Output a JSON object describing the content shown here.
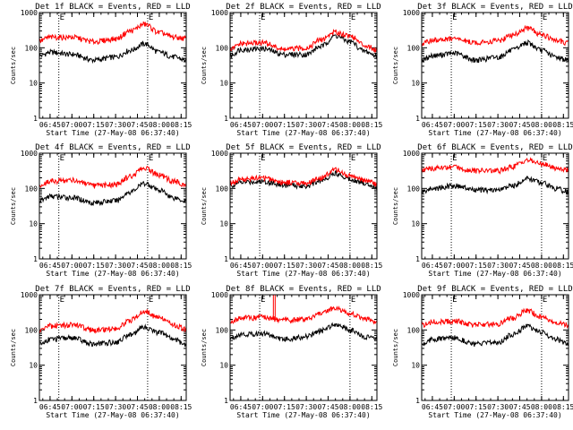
{
  "chart_data": [
    {
      "type": "line",
      "title": "Det 1f BLACK = Events, RED = LLD",
      "xlabel": "Start Time (27-May-08 06:37:40)",
      "ylabel": "Counts/sec",
      "y_scale": "log",
      "ylim": [
        1,
        1000
      ],
      "xlim": [
        "06:37:40",
        "08:18:30"
      ],
      "x_ticks": [
        "06:45",
        "07:00",
        "07:15",
        "07:30",
        "07:45",
        "08:00",
        "08:15"
      ],
      "y_ticks": [
        "1",
        "10",
        "100",
        "1000"
      ],
      "markers": [
        "06:51",
        "07:52"
      ],
      "marker_labels": [
        "E",
        "E"
      ],
      "x": [
        "06:38",
        "06:45",
        "07:00",
        "07:15",
        "07:30",
        "07:40",
        "07:50",
        "08:00",
        "08:10",
        "08:18"
      ],
      "series": [
        {
          "name": "BLACK = Events",
          "color": "#000000",
          "values": [
            60,
            75,
            65,
            45,
            55,
            85,
            130,
            75,
            55,
            45
          ]
        },
        {
          "name": "RED = LLD",
          "color": "#ff0000",
          "values": [
            160,
            200,
            200,
            150,
            180,
            300,
            470,
            270,
            200,
            185
          ]
        }
      ]
    },
    {
      "type": "line",
      "title": "Det 2f BLACK = Events, RED = LLD",
      "xlabel": "Start Time (27-May-08 06:37:40)",
      "ylabel": "Counts/sec",
      "y_scale": "log",
      "ylim": [
        1,
        1000
      ],
      "xlim": [
        "06:37:40",
        "08:18:30"
      ],
      "x_ticks": [
        "06:45",
        "07:00",
        "07:15",
        "07:30",
        "07:45",
        "08:00",
        "08:15"
      ],
      "y_ticks": [
        "1",
        "10",
        "100",
        "1000"
      ],
      "markers": [
        "06:58",
        "08:00"
      ],
      "marker_labels": [
        "E",
        "E"
      ],
      "x": [
        "06:38",
        "06:45",
        "07:00",
        "07:15",
        "07:30",
        "07:40",
        "07:50",
        "08:00",
        "08:10",
        "08:18"
      ],
      "series": [
        {
          "name": "BLACK = Events",
          "color": "#000000",
          "values": [
            60,
            90,
            95,
            65,
            65,
            110,
            220,
            150,
            80,
            60
          ]
        },
        {
          "name": "RED = LLD",
          "color": "#ff0000",
          "values": [
            90,
            130,
            140,
            90,
            100,
            170,
            280,
            220,
            120,
            90
          ]
        }
      ]
    },
    {
      "type": "line",
      "title": "Det 3f BLACK = Events, RED = LLD",
      "xlabel": "Start Time (27-May-08 06:37:40)",
      "ylabel": "Counts/sec",
      "y_scale": "log",
      "ylim": [
        1,
        1000
      ],
      "xlim": [
        "06:37:40",
        "08:18:30"
      ],
      "x_ticks": [
        "06:45",
        "07:00",
        "07:15",
        "07:30",
        "07:45",
        "08:00",
        "08:15"
      ],
      "y_ticks": [
        "1",
        "10",
        "100",
        "1000"
      ],
      "markers": [
        "06:58",
        "08:00"
      ],
      "marker_labels": [
        "E",
        "E"
      ],
      "x": [
        "06:38",
        "06:45",
        "07:00",
        "07:15",
        "07:30",
        "07:40",
        "07:50",
        "08:00",
        "08:10",
        "08:18"
      ],
      "series": [
        {
          "name": "BLACK = Events",
          "color": "#000000",
          "values": [
            45,
            60,
            70,
            45,
            55,
            85,
            140,
            85,
            55,
            45
          ]
        },
        {
          "name": "RED = LLD",
          "color": "#ff0000",
          "values": [
            130,
            165,
            180,
            140,
            160,
            230,
            360,
            240,
            160,
            140
          ]
        }
      ]
    },
    {
      "type": "line",
      "title": "Det 4f BLACK = Events, RED = LLD",
      "xlabel": "Start Time (27-May-08 06:37:40)",
      "ylabel": "Counts/sec",
      "y_scale": "log",
      "ylim": [
        1,
        1000
      ],
      "xlim": [
        "06:37:40",
        "08:18:30"
      ],
      "x_ticks": [
        "06:45",
        "07:00",
        "07:15",
        "07:30",
        "07:45",
        "08:00",
        "08:15"
      ],
      "y_ticks": [
        "1",
        "10",
        "100",
        "1000"
      ],
      "markers": [
        "06:51",
        "07:52"
      ],
      "marker_labels": [
        "E",
        "E"
      ],
      "x": [
        "06:38",
        "06:45",
        "07:00",
        "07:15",
        "07:30",
        "07:40",
        "07:50",
        "08:00",
        "08:10",
        "08:18"
      ],
      "series": [
        {
          "name": "BLACK = Events",
          "color": "#000000",
          "values": [
            45,
            60,
            55,
            40,
            45,
            80,
            140,
            90,
            55,
            45
          ]
        },
        {
          "name": "RED = LLD",
          "color": "#ff0000",
          "values": [
            120,
            160,
            175,
            120,
            130,
            220,
            380,
            240,
            160,
            130
          ]
        }
      ]
    },
    {
      "type": "line",
      "title": "Det 5f BLACK = Events, RED = LLD",
      "xlabel": "Start Time (27-May-08 06:37:40)",
      "ylabel": "Counts/sec",
      "y_scale": "log",
      "ylim": [
        1,
        1000
      ],
      "xlim": [
        "06:37:40",
        "08:18:30"
      ],
      "x_ticks": [
        "06:45",
        "07:00",
        "07:15",
        "07:30",
        "07:45",
        "08:00",
        "08:15"
      ],
      "y_ticks": [
        "1",
        "10",
        "100",
        "1000"
      ],
      "markers": [
        "06:58",
        "08:00"
      ],
      "marker_labels": [
        "E",
        "E"
      ],
      "x": [
        "06:38",
        "06:45",
        "07:00",
        "07:15",
        "07:30",
        "07:40",
        "07:50",
        "08:00",
        "08:10",
        "08:18"
      ],
      "series": [
        {
          "name": "BLACK = Events",
          "color": "#000000",
          "values": [
            120,
            150,
            160,
            125,
            120,
            170,
            270,
            190,
            140,
            115
          ]
        },
        {
          "name": "RED = LLD",
          "color": "#ff0000",
          "values": [
            145,
            180,
            200,
            150,
            140,
            200,
            340,
            230,
            170,
            140
          ]
        }
      ]
    },
    {
      "type": "line",
      "title": "Det 6f BLACK = Events, RED = LLD",
      "xlabel": "Start Time (27-May-08 06:37:40)",
      "ylabel": "Counts/sec",
      "y_scale": "log",
      "ylim": [
        1,
        1000
      ],
      "xlim": [
        "06:37:40",
        "08:18:30"
      ],
      "x_ticks": [
        "06:45",
        "07:00",
        "07:15",
        "07:30",
        "07:45",
        "08:00",
        "08:15"
      ],
      "y_ticks": [
        "1",
        "10",
        "100",
        "1000"
      ],
      "markers": [
        "06:58",
        "08:00"
      ],
      "marker_labels": [
        "E",
        "E"
      ],
      "x": [
        "06:38",
        "06:45",
        "07:00",
        "07:15",
        "07:30",
        "07:40",
        "07:50",
        "08:00",
        "08:10",
        "08:18"
      ],
      "series": [
        {
          "name": "BLACK = Events",
          "color": "#000000",
          "values": [
            80,
            100,
            120,
            90,
            90,
            120,
            190,
            150,
            100,
            80
          ]
        },
        {
          "name": "RED = LLD",
          "color": "#ff0000",
          "values": [
            330,
            380,
            400,
            320,
            320,
            420,
            640,
            500,
            380,
            330
          ]
        }
      ]
    },
    {
      "type": "line",
      "title": "Det 7f BLACK = Events, RED = LLD",
      "xlabel": "Start Time (27-May-08 06:37:40)",
      "ylabel": "Counts/sec",
      "y_scale": "log",
      "ylim": [
        1,
        1000
      ],
      "xlim": [
        "06:37:40",
        "08:18:30"
      ],
      "x_ticks": [
        "06:45",
        "07:00",
        "07:15",
        "07:30",
        "07:45",
        "08:00",
        "08:15"
      ],
      "y_ticks": [
        "1",
        "10",
        "100",
        "1000"
      ],
      "markers": [
        "06:51",
        "07:52"
      ],
      "marker_labels": [
        "E",
        "E"
      ],
      "x": [
        "06:38",
        "06:45",
        "07:00",
        "07:15",
        "07:30",
        "07:40",
        "07:50",
        "08:00",
        "08:10",
        "08:18"
      ],
      "series": [
        {
          "name": "BLACK = Events",
          "color": "#000000",
          "values": [
            40,
            55,
            60,
            40,
            45,
            75,
            120,
            85,
            55,
            40
          ]
        },
        {
          "name": "RED = LLD",
          "color": "#ff0000",
          "values": [
            100,
            130,
            140,
            100,
            110,
            190,
            340,
            220,
            140,
            110
          ]
        }
      ]
    },
    {
      "type": "line",
      "title": "Det 8f BLACK = Events, RED = LLD",
      "xlabel": "Start Time (27-May-08 06:37:40)",
      "ylabel": "Counts/sec",
      "y_scale": "log",
      "ylim": [
        1,
        1000
      ],
      "xlim": [
        "06:37:40",
        "08:18:30"
      ],
      "x_ticks": [
        "06:45",
        "07:00",
        "07:15",
        "07:30",
        "07:45",
        "08:00",
        "08:15"
      ],
      "y_ticks": [
        "1",
        "10",
        "100",
        "1000"
      ],
      "markers": [
        "06:58",
        "08:00"
      ],
      "marker_labels": [
        "E",
        "E"
      ],
      "spike_time": "07:08",
      "spike_value": 1000,
      "x": [
        "06:38",
        "06:45",
        "07:00",
        "07:15",
        "07:30",
        "07:40",
        "07:50",
        "08:00",
        "08:10",
        "08:18"
      ],
      "series": [
        {
          "name": "BLACK = Events",
          "color": "#000000",
          "values": [
            60,
            75,
            80,
            55,
            65,
            95,
            150,
            100,
            65,
            55
          ]
        },
        {
          "name": "RED = LLD",
          "color": "#ff0000",
          "values": [
            180,
            220,
            230,
            190,
            200,
            290,
            420,
            290,
            210,
            180
          ]
        }
      ]
    },
    {
      "type": "line",
      "title": "Det 9f BLACK = Events, RED = LLD",
      "xlabel": "Start Time (27-May-08 06:37:40)",
      "ylabel": "Counts/sec",
      "y_scale": "log",
      "ylim": [
        1,
        1000
      ],
      "xlim": [
        "06:37:40",
        "08:18:30"
      ],
      "x_ticks": [
        "06:45",
        "07:00",
        "07:15",
        "07:30",
        "07:45",
        "08:00",
        "08:15"
      ],
      "y_ticks": [
        "1",
        "10",
        "100",
        "1000"
      ],
      "markers": [
        "06:58",
        "08:00"
      ],
      "marker_labels": [
        "E",
        "E"
      ],
      "x": [
        "06:38",
        "06:45",
        "07:00",
        "07:15",
        "07:30",
        "07:40",
        "07:50",
        "08:00",
        "08:10",
        "08:18"
      ],
      "series": [
        {
          "name": "BLACK = Events",
          "color": "#000000",
          "values": [
            40,
            55,
            60,
            40,
            45,
            75,
            130,
            85,
            55,
            40
          ]
        },
        {
          "name": "RED = LLD",
          "color": "#ff0000",
          "values": [
            140,
            170,
            180,
            140,
            150,
            220,
            360,
            240,
            170,
            140
          ]
        }
      ]
    }
  ]
}
